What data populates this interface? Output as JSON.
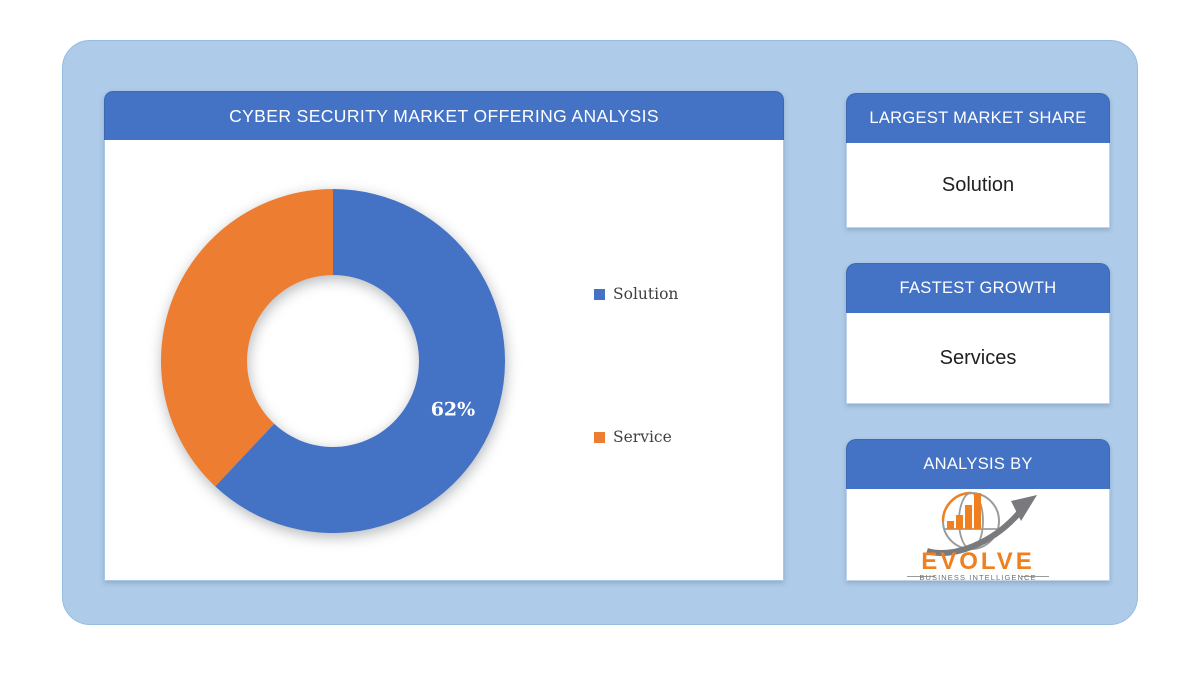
{
  "theme": {
    "accent_blue": "#4472C4",
    "accent_orange": "#ED7D31",
    "canvas_bg": "#AECBE9",
    "page_bg": "#FFFFFF"
  },
  "chart_panel": {
    "title": "CYBER SECURITY MARKET OFFERING ANALYSIS"
  },
  "chart_data": {
    "type": "pie",
    "subtype": "donut",
    "title": "CYBER SECURITY MARKET OFFERING ANALYSIS",
    "categories": [
      "Solution",
      "Service"
    ],
    "values": [
      62,
      38
    ],
    "unit": "percent",
    "colors": [
      "#4472C4",
      "#ED7D31"
    ],
    "data_labels": [
      "62%",
      ""
    ],
    "start_angle_deg": 0,
    "direction": "clockwise",
    "donut_hole_pct": 50,
    "legend_position": "right",
    "grid": false
  },
  "info_cards": [
    {
      "header": "LARGEST MARKET SHARE",
      "value": "Solution"
    },
    {
      "header": "FASTEST GROWTH",
      "value": "Services"
    },
    {
      "header": "ANALYSIS BY"
    }
  ],
  "logo": {
    "brand": "EVOLVE",
    "tagline": "BUSINESS INTELLIGENCE",
    "orange": "#F07F1F",
    "gray": "#6F7072"
  }
}
